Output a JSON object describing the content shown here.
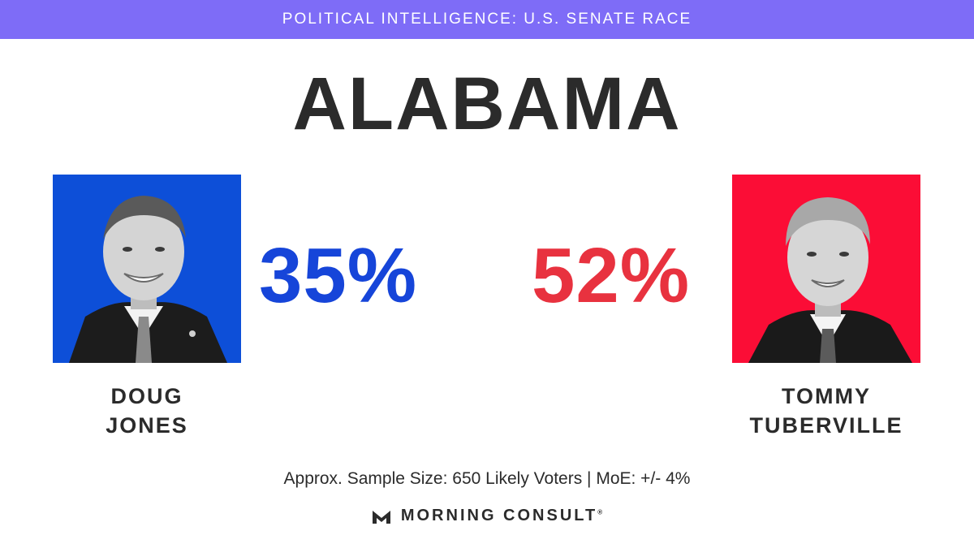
{
  "header": {
    "banner": "POLITICAL INTELLIGENCE: U.S. SENATE RACE",
    "state": "ALABAMA"
  },
  "candidates": [
    {
      "first": "DOUG",
      "last": "JONES",
      "percent": "35%",
      "color": "#1645d9",
      "photo_bg": "#0d4fd8"
    },
    {
      "first": "TOMMY",
      "last": "TUBERVILLE",
      "percent": "52%",
      "color": "#e8323f",
      "photo_bg": "#fb0d36"
    }
  ],
  "footer": {
    "sample": "Approx. Sample Size: 650 Likely Voters | MoE: +/- 4%",
    "brand": "MORNING CONSULT",
    "brand_mark": "®",
    "logo_icon": "morning-consult-logo-icon"
  }
}
